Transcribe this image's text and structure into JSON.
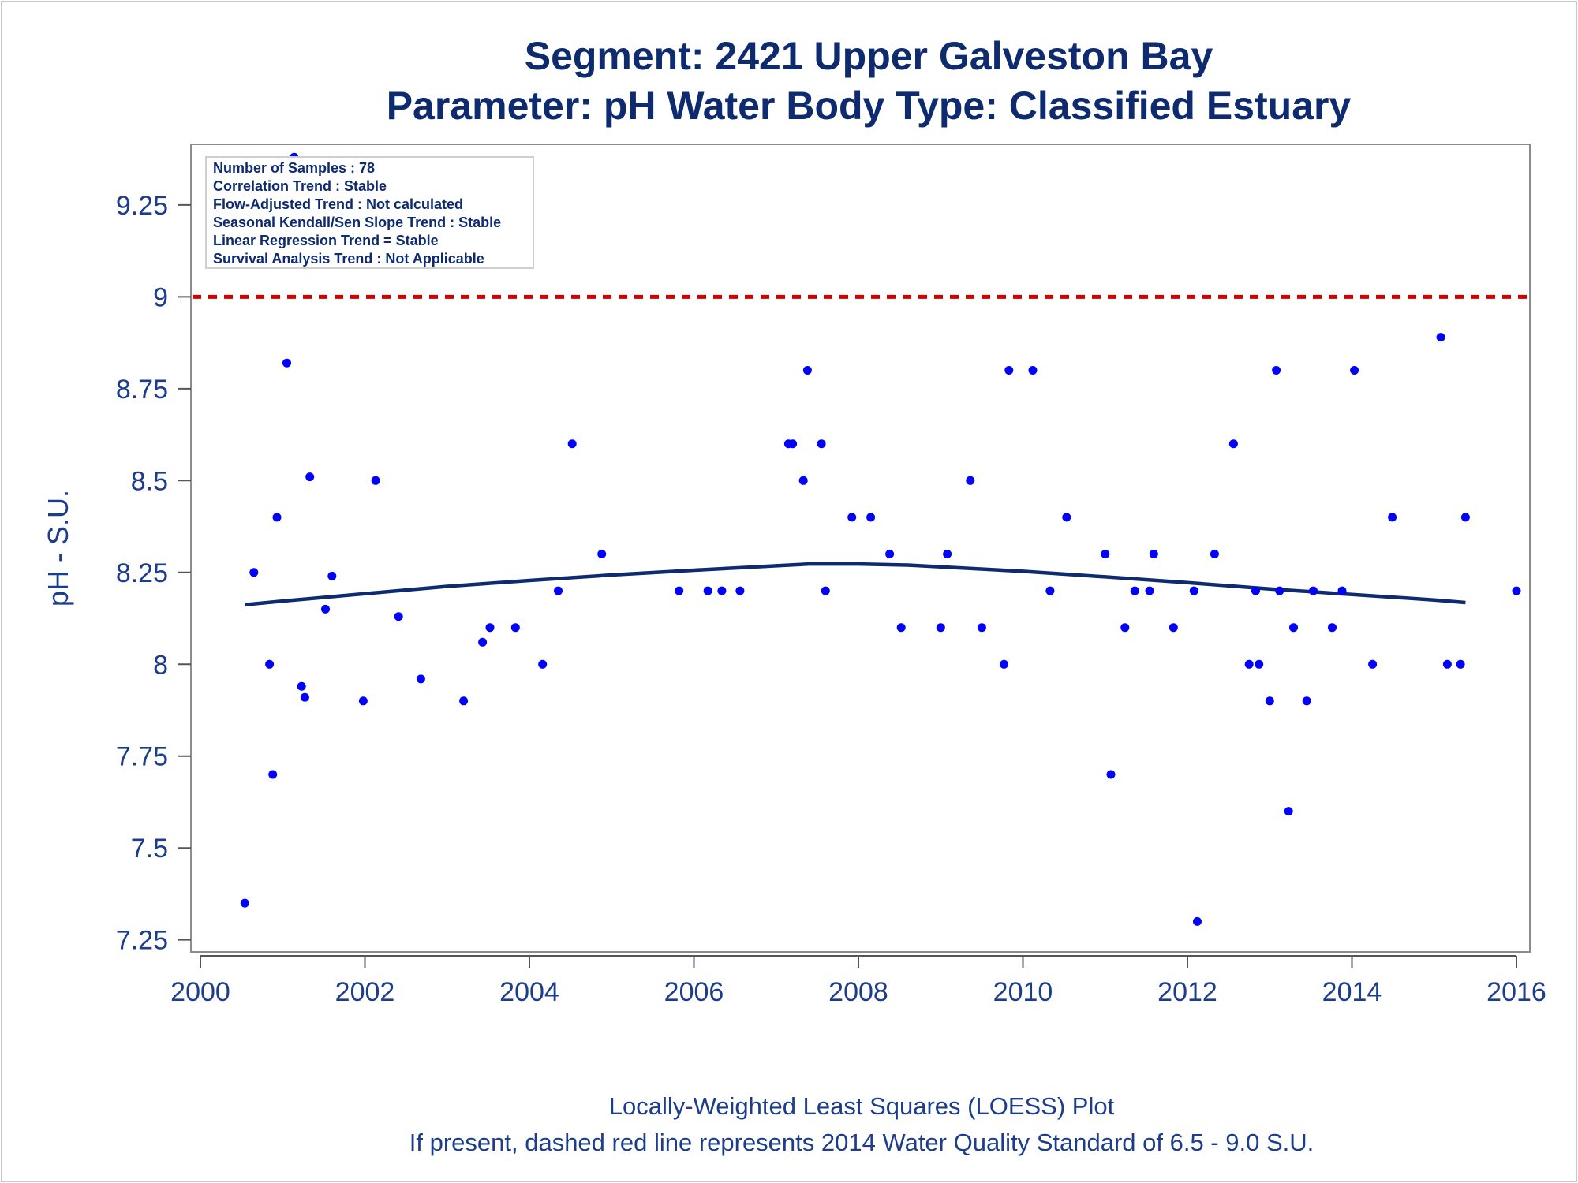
{
  "colors": {
    "title": "#0d2b6e",
    "text": "#1c3d8c",
    "points": "#0000ff",
    "loess": "#0d2b6e",
    "standard_line": "#d40000",
    "frame": "#8c8c8c"
  },
  "chart_data": {
    "type": "scatter",
    "title": "Segment: 2421  Upper Galveston Bay",
    "subtitle": "Parameter: pH   Water Body Type: Classified Estuary",
    "xlabel": "",
    "ylabel": "pH - S.U.",
    "xlim": [
      2000,
      2016
    ],
    "ylim": [
      7.23,
      9.4
    ],
    "x_ticks": [
      "2000",
      "2002",
      "2004",
      "2006",
      "2008",
      "2010",
      "2012",
      "2014",
      "2016"
    ],
    "y_ticks": [
      "7.25",
      "7.5",
      "7.75",
      "8",
      "8.25",
      "8.5",
      "8.75",
      "9",
      "9.25"
    ],
    "grid": false,
    "legend_position": "top-left",
    "stats": [
      "Number of Samples : 78",
      "Correlation Trend : Stable",
      "Flow-Adjusted Trend : Not calculated",
      "Seasonal Kendall/Sen Slope Trend : Stable",
      "Linear Regression Trend = Stable",
      "Survival Analysis Trend : Not Applicable"
    ],
    "reference_line": {
      "y": 9.0,
      "style": "dashed",
      "color": "#d40000"
    },
    "footnotes": [
      "Locally-Weighted Least Squares (LOESS) Plot",
      "If present, dashed red line represents 2014 Water Quality Standard of 6.5 - 9.0 S.U."
    ],
    "series": [
      {
        "kind": "points",
        "points": [
          [
            2000.54,
            7.35
          ],
          [
            2000.65,
            8.25
          ],
          [
            2000.84,
            8.0
          ],
          [
            2000.88,
            7.7
          ],
          [
            2000.93,
            8.4
          ],
          [
            2001.05,
            8.82
          ],
          [
            2001.14,
            9.38
          ],
          [
            2001.23,
            7.94
          ],
          [
            2001.27,
            7.91
          ],
          [
            2001.33,
            8.51
          ],
          [
            2001.52,
            8.15
          ],
          [
            2001.6,
            8.24
          ],
          [
            2001.98,
            7.9
          ],
          [
            2002.13,
            8.5
          ],
          [
            2002.41,
            8.13
          ],
          [
            2002.68,
            7.96
          ],
          [
            2003.2,
            7.9
          ],
          [
            2003.43,
            8.06
          ],
          [
            2003.52,
            8.1
          ],
          [
            2003.83,
            8.1
          ],
          [
            2004.16,
            8.0
          ],
          [
            2004.35,
            8.2
          ],
          [
            2004.52,
            8.6
          ],
          [
            2004.88,
            8.3
          ],
          [
            2005.82,
            8.2
          ],
          [
            2006.17,
            8.2
          ],
          [
            2006.34,
            8.2
          ],
          [
            2006.56,
            8.2
          ],
          [
            2007.15,
            8.6
          ],
          [
            2007.2,
            8.6
          ],
          [
            2007.33,
            8.5
          ],
          [
            2007.38,
            8.8
          ],
          [
            2007.55,
            8.6
          ],
          [
            2007.6,
            8.2
          ],
          [
            2007.92,
            8.4
          ],
          [
            2008.15,
            8.4
          ],
          [
            2008.38,
            8.3
          ],
          [
            2008.52,
            8.1
          ],
          [
            2009.0,
            8.1
          ],
          [
            2009.08,
            8.3
          ],
          [
            2009.36,
            8.5
          ],
          [
            2009.5,
            8.1
          ],
          [
            2009.77,
            8.0
          ],
          [
            2009.83,
            8.8
          ],
          [
            2010.12,
            8.8
          ],
          [
            2010.33,
            8.2
          ],
          [
            2010.53,
            8.4
          ],
          [
            2011.0,
            8.3
          ],
          [
            2011.07,
            7.7
          ],
          [
            2011.24,
            8.1
          ],
          [
            2011.36,
            8.2
          ],
          [
            2011.54,
            8.2
          ],
          [
            2011.59,
            8.3
          ],
          [
            2011.83,
            8.1
          ],
          [
            2012.08,
            8.2
          ],
          [
            2012.12,
            7.3
          ],
          [
            2012.33,
            8.3
          ],
          [
            2012.56,
            8.6
          ],
          [
            2012.75,
            8.0
          ],
          [
            2012.83,
            8.2
          ],
          [
            2012.87,
            8.0
          ],
          [
            2013.0,
            7.9
          ],
          [
            2013.08,
            8.8
          ],
          [
            2013.12,
            8.2
          ],
          [
            2013.23,
            7.6
          ],
          [
            2013.29,
            8.1
          ],
          [
            2013.45,
            7.9
          ],
          [
            2013.53,
            8.2
          ],
          [
            2013.76,
            8.1
          ],
          [
            2013.88,
            8.2
          ],
          [
            2014.03,
            8.8
          ],
          [
            2014.25,
            8.0
          ],
          [
            2014.49,
            8.4
          ],
          [
            2015.08,
            8.89
          ],
          [
            2015.16,
            8.0
          ],
          [
            2015.32,
            8.0
          ],
          [
            2015.38,
            8.4
          ],
          [
            2016.0,
            8.2
          ]
        ]
      },
      {
        "kind": "loess",
        "points": [
          [
            2000.54,
            8.162
          ],
          [
            2001.0,
            8.172
          ],
          [
            2002.0,
            8.192
          ],
          [
            2003.0,
            8.212
          ],
          [
            2004.0,
            8.228
          ],
          [
            2005.0,
            8.243
          ],
          [
            2006.0,
            8.256
          ],
          [
            2007.0,
            8.268
          ],
          [
            2007.4,
            8.273
          ],
          [
            2008.0,
            8.273
          ],
          [
            2008.6,
            8.27
          ],
          [
            2009.0,
            8.265
          ],
          [
            2010.0,
            8.253
          ],
          [
            2011.0,
            8.238
          ],
          [
            2012.0,
            8.222
          ],
          [
            2013.0,
            8.205
          ],
          [
            2014.0,
            8.19
          ],
          [
            2015.0,
            8.175
          ],
          [
            2015.38,
            8.168
          ]
        ]
      }
    ]
  }
}
